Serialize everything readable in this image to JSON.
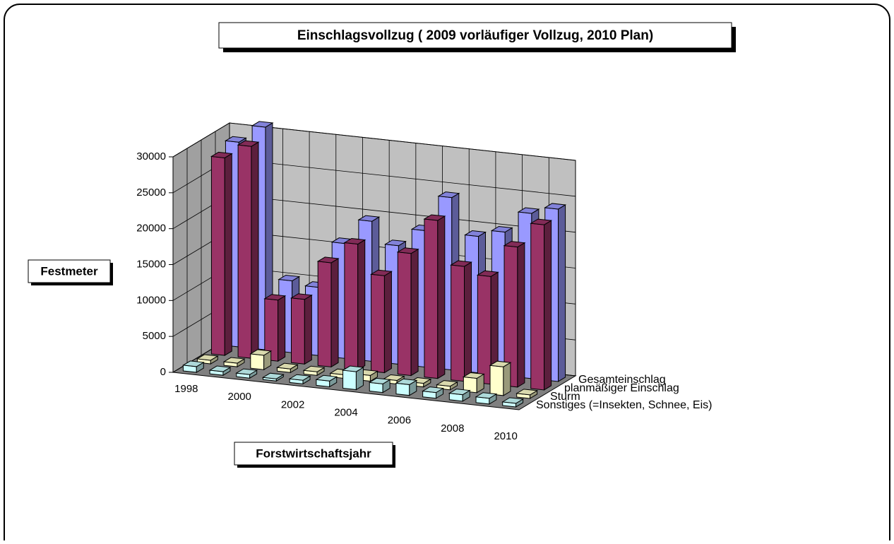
{
  "chart_data": {
    "type": "bar3d",
    "title": "Einschlagsvollzug ( 2009 vorläufiger Vollzug, 2010 Plan)",
    "y_label": "Festmeter",
    "x_label": "Forstwirtschaftsjahr",
    "categories": [
      "1998",
      null,
      "2000",
      null,
      "2002",
      null,
      "2004",
      null,
      "2006",
      null,
      "2008",
      null,
      "2010"
    ],
    "series": [
      {
        "name": "Gesamteinschlag",
        "color": "#9999ff",
        "values": [
          28500,
          31000,
          10000,
          9500,
          16000,
          19500,
          16500,
          19000,
          24000,
          19000,
          20000,
          23000,
          24000
        ]
      },
      {
        "name": "planmäßiger Einschlag",
        "color": "#993366",
        "values": [
          27500,
          29500,
          8500,
          9000,
          14500,
          17500,
          13500,
          17000,
          22000,
          16000,
          15000,
          19500,
          23000
        ]
      },
      {
        "name": "Sturm",
        "color": "#ffffcc",
        "values": [
          500,
          500,
          2000,
          500,
          500,
          500,
          800,
          500,
          500,
          500,
          2000,
          4000,
          500
        ]
      },
      {
        "name": "Sonstiges (=Insekten, Schnee, Eis)",
        "color": "#ccffff",
        "values": [
          800,
          500,
          500,
          300,
          500,
          800,
          2500,
          1200,
          1500,
          800,
          900,
          800,
          500
        ]
      }
    ],
    "ylim": [
      0,
      30000
    ],
    "yticks": [
      0,
      5000,
      10000,
      15000,
      20000,
      25000,
      30000
    ],
    "grid": true
  }
}
